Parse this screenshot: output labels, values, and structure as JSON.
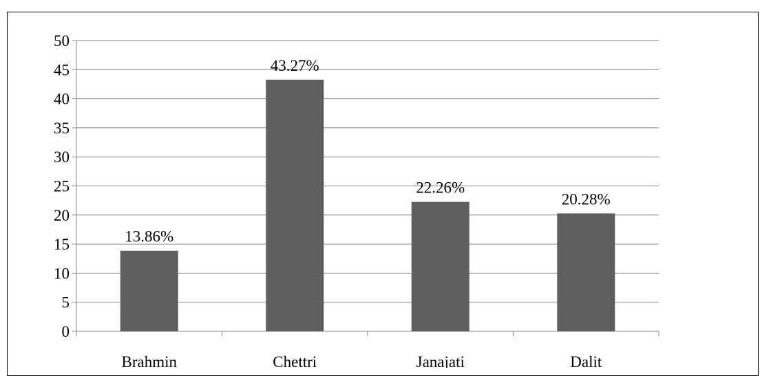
{
  "chart_data": {
    "type": "bar",
    "categories": [
      "Brahmin",
      "Chettri",
      "Janajati",
      "Dalit"
    ],
    "values": [
      13.86,
      43.27,
      22.26,
      20.28
    ],
    "data_labels": [
      "13.86%",
      "43.27%",
      "22.26%",
      "20.28%"
    ],
    "title": "",
    "xlabel": "",
    "ylabel": "",
    "ylim": [
      0,
      50
    ],
    "yticks": [
      0,
      5,
      10,
      15,
      20,
      25,
      30,
      35,
      40,
      45,
      50
    ],
    "grid": true,
    "legend": "none",
    "colors": {
      "bar": "#5f5f5f",
      "grid": "#868686",
      "axis": "#868686"
    }
  }
}
